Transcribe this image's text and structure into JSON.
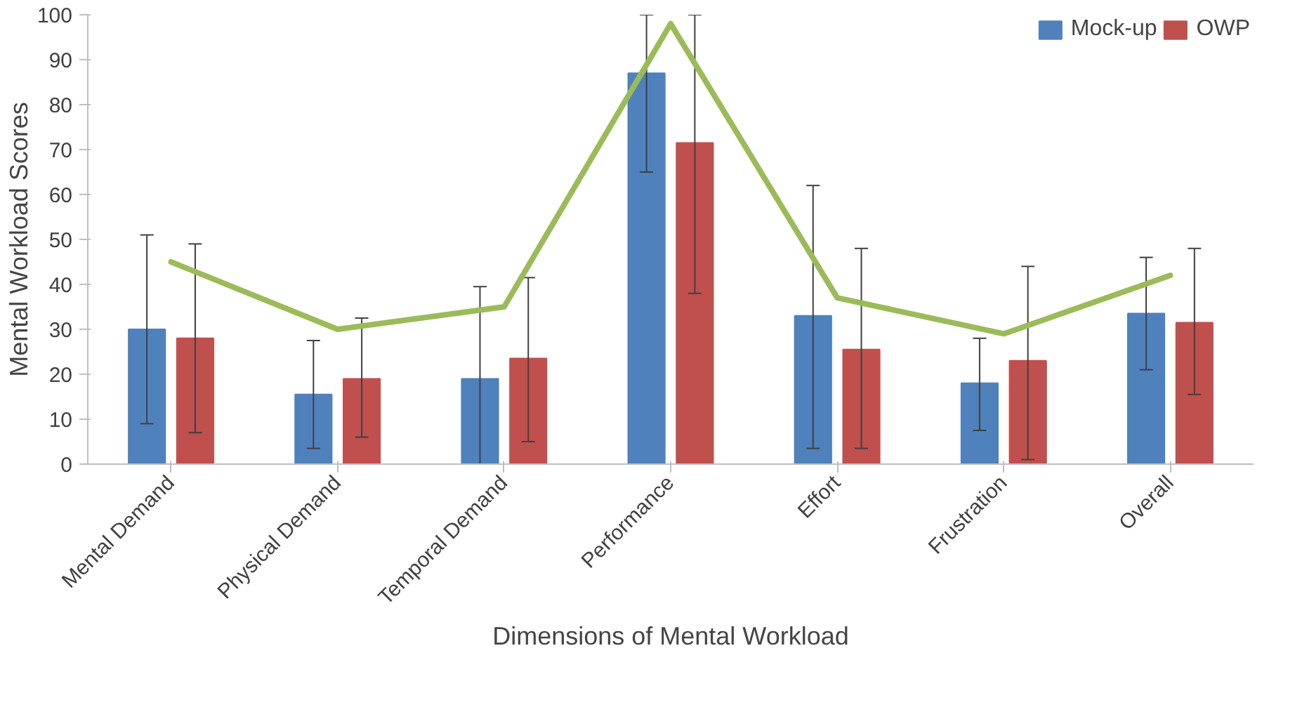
{
  "chart_data": {
    "type": "bar",
    "ylabel": "Mental Workload Scores",
    "xlabel": "Dimensions of Mental Workload",
    "categories": [
      "Mental Demand",
      "Physical Demand",
      "Temporal Demand",
      "Performance",
      "Effort",
      "Frustration",
      "Overall"
    ],
    "ylim": [
      0,
      100
    ],
    "yticks": [
      0,
      10,
      20,
      30,
      40,
      50,
      60,
      70,
      80,
      90,
      100
    ],
    "grid": false,
    "legend": "top right",
    "series": [
      {
        "name": "Mock-up",
        "color": "#4f81bd",
        "values": [
          30,
          15.5,
          19,
          87,
          33,
          18,
          33.5
        ],
        "errors": [
          [
            9,
            51
          ],
          [
            3.5,
            27.5
          ],
          [
            0,
            39.5
          ],
          [
            65,
            100
          ],
          [
            3.5,
            62
          ],
          [
            7.5,
            28
          ],
          [
            21,
            46
          ]
        ]
      },
      {
        "name": "OWP",
        "color": "#c0504d",
        "values": [
          28,
          19,
          23.5,
          71.5,
          25.5,
          23,
          31.5
        ],
        "errors": [
          [
            7,
            49
          ],
          [
            6,
            32.5
          ],
          [
            5,
            41.5
          ],
          [
            38,
            100
          ],
          [
            3.5,
            48
          ],
          [
            1,
            44
          ],
          [
            15.5,
            48
          ]
        ]
      },
      {
        "type": "line",
        "color": "#9bbb59",
        "values": [
          45,
          30,
          35,
          98,
          37,
          29,
          42
        ]
      }
    ]
  }
}
